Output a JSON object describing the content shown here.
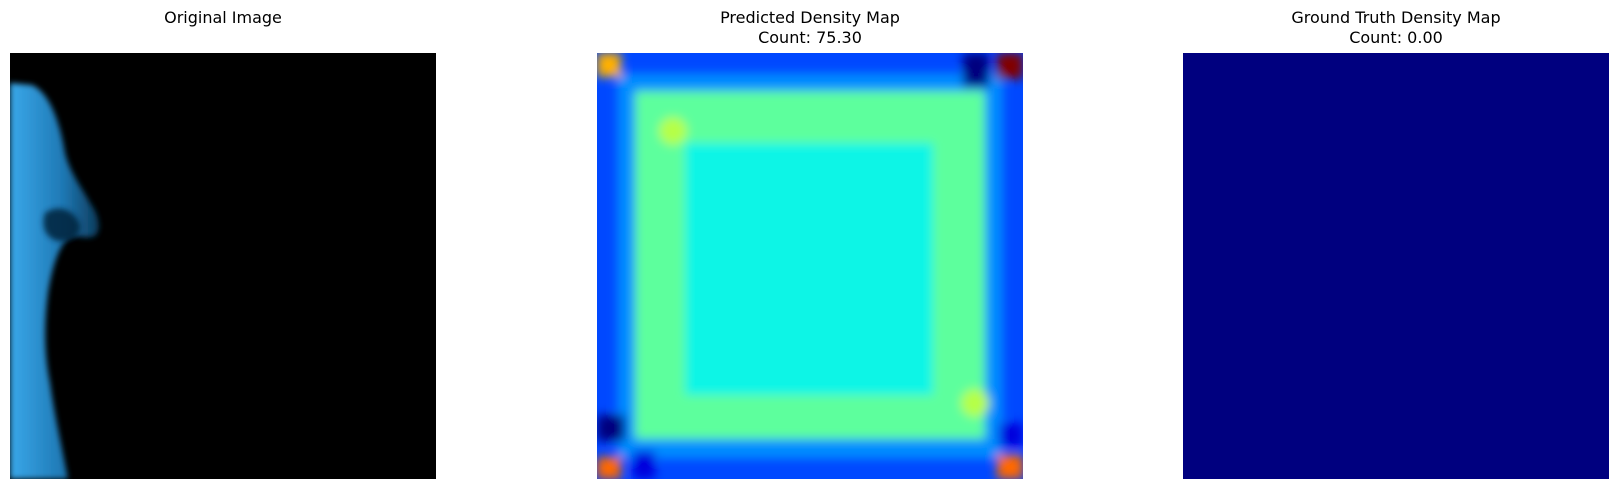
{
  "figure": {
    "panels": [
      {
        "title": "Original Image",
        "subtitle": ""
      },
      {
        "title": "Predicted Density Map",
        "subtitle": "Count: 75.30"
      },
      {
        "title": "Ground Truth Density Map",
        "subtitle": "Count: 0.00"
      }
    ],
    "colors": {
      "jet_dark_blue": "#00007f",
      "jet_blue": "#0048ff",
      "jet_light_blue": "#008cff",
      "jet_cyan": "#10f5e6",
      "jet_green": "#5dff9d",
      "jet_yellow_green": "#b6ff47",
      "jet_orange": "#ff6800",
      "jet_amber": "#ffb000",
      "jet_dark_red": "#800000",
      "photo_black": "#000000",
      "photo_blue": "#2a9bdf"
    }
  }
}
